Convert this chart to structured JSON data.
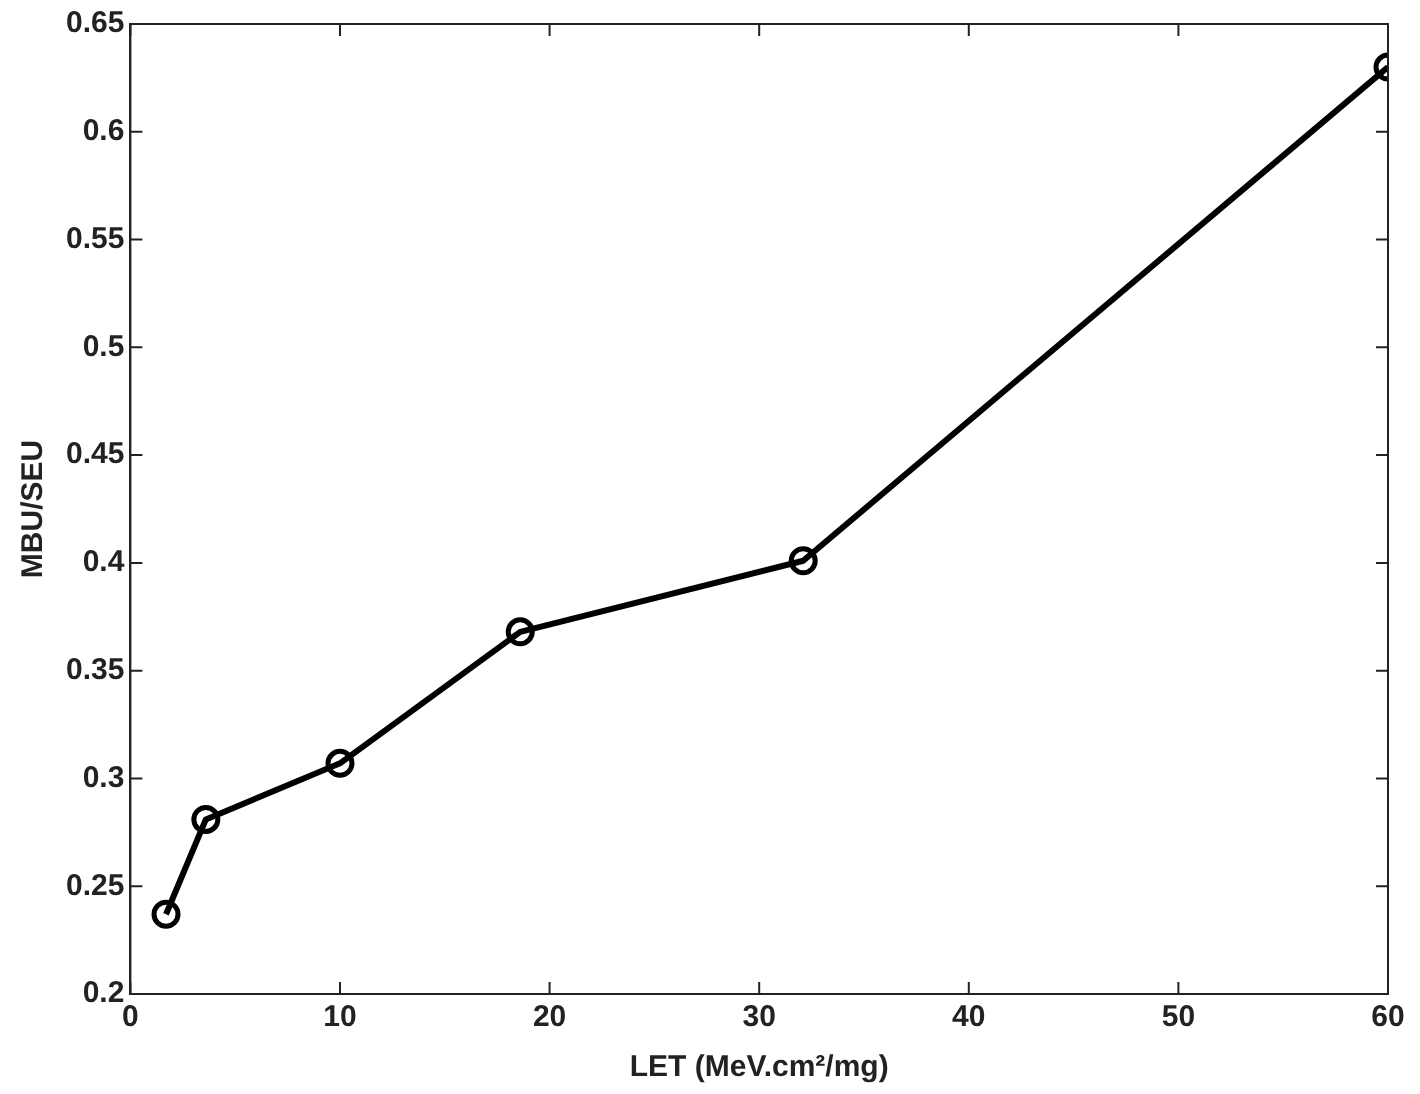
{
  "chart_data": {
    "type": "line",
    "xlabel": "LET (MeV.cm²/mg)",
    "ylabel": "MBU/SEU",
    "x": [
      1.7,
      3.6,
      10,
      18.6,
      32.1,
      60
    ],
    "series": [
      {
        "color": "#000000",
        "values": [
          0.237,
          0.281,
          0.307,
          0.368,
          0.401,
          0.63
        ]
      }
    ],
    "xlim": [
      0,
      60
    ],
    "xticks": [
      0,
      10,
      20,
      30,
      40,
      50,
      60
    ],
    "ylim": [
      0.2,
      0.65
    ],
    "yticks": [
      0.2,
      0.25,
      0.3,
      0.35,
      0.4,
      0.45,
      0.5,
      0.55,
      0.6,
      0.65
    ],
    "grid": false,
    "legend": false,
    "marker": "circle",
    "line_style": "solid"
  }
}
